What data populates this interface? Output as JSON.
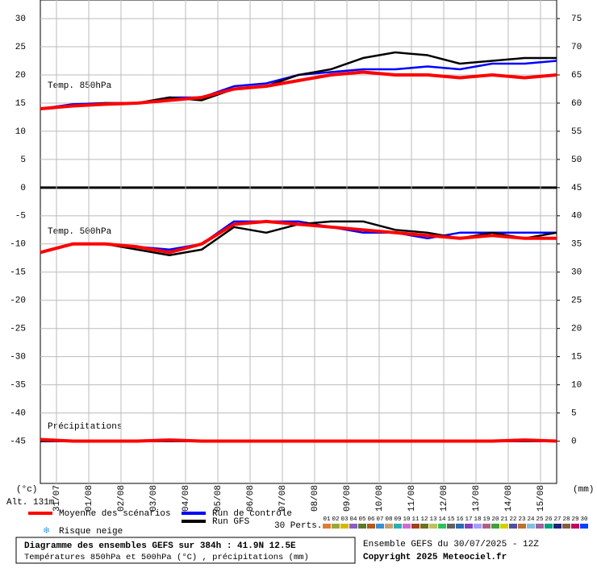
{
  "chart_data": {
    "type": "line",
    "panels": [
      "Temp. 850hPa",
      "Temp. 500hPa",
      "Précipitations"
    ],
    "y_unit": "(°c)",
    "y2_unit": "(mm)",
    "altitude": "Alt. 131m",
    "xlim": [
      0,
      384
    ],
    "x": [
      0,
      24,
      48,
      72,
      96,
      120,
      144,
      168,
      192,
      216,
      240,
      264,
      288,
      312,
      336,
      360,
      384
    ],
    "xticks": [
      {
        "value": 12,
        "label": "31/07"
      },
      {
        "value": 36,
        "label": "01/08"
      },
      {
        "value": 60,
        "label": "02/08"
      },
      {
        "value": 84,
        "label": "03/08"
      },
      {
        "value": 108,
        "label": "04/08"
      },
      {
        "value": 132,
        "label": "05/08"
      },
      {
        "value": 156,
        "label": "06/08"
      },
      {
        "value": 180,
        "label": "07/08"
      },
      {
        "value": 204,
        "label": "08/08"
      },
      {
        "value": 228,
        "label": "09/08"
      },
      {
        "value": 252,
        "label": "10/08"
      },
      {
        "value": 276,
        "label": "11/08"
      },
      {
        "value": 300,
        "label": "12/08"
      },
      {
        "value": 324,
        "label": "13/08"
      },
      {
        "value": 348,
        "label": "14/08"
      },
      {
        "value": 372,
        "label": "15/08"
      }
    ],
    "ylim": [
      -52.5,
      33.3
    ],
    "yticks": [
      30,
      25,
      20,
      15,
      10,
      5,
      0,
      -5,
      -10,
      -15,
      -20,
      -25,
      -30,
      -35,
      -40,
      -45
    ],
    "y2lim": [
      -7.5,
      78.3
    ],
    "y2ticks": [
      75,
      70,
      65,
      60,
      55,
      50,
      45,
      40,
      35,
      30,
      25,
      20,
      15,
      10,
      5,
      0
    ],
    "grid": true,
    "series": [
      {
        "name": "Run de contrôle",
        "color": "#0000ff",
        "t850": [
          14,
          14.8,
          15,
          15,
          16,
          16,
          18,
          18.5,
          20,
          20.5,
          21,
          21,
          21.5,
          21,
          22,
          22,
          22.5
        ],
        "t500": [
          -11.5,
          -10,
          -10,
          -10.5,
          -11,
          -10,
          -6,
          -6,
          -6,
          -7,
          -8,
          -8,
          -9,
          -8,
          -8,
          -8,
          -8
        ],
        "precip": [
          0,
          0,
          0,
          0,
          0,
          0,
          0,
          0,
          0,
          0,
          0,
          0,
          0,
          0,
          0,
          0,
          0
        ]
      },
      {
        "name": "Run GFS",
        "color": "#000000",
        "t850": [
          14,
          14.5,
          15,
          15,
          16,
          15.5,
          17.5,
          18,
          20,
          21,
          23,
          24,
          23.5,
          22,
          22.5,
          23,
          23
        ],
        "t500": [
          -11.5,
          -10,
          -10,
          -11,
          -12,
          -11,
          -7,
          -8,
          -6.5,
          -6,
          -6,
          -7.5,
          -8,
          -9,
          -8,
          -9,
          -8
        ],
        "precip": [
          0,
          0,
          0,
          0,
          0,
          0,
          0,
          0,
          0,
          0,
          0,
          0,
          0,
          0,
          0,
          0,
          0
        ]
      },
      {
        "name": "Moyenne des scénarios",
        "color": "#ff0000",
        "t850": [
          14,
          14.5,
          14.8,
          15,
          15.5,
          16,
          17.5,
          18,
          19,
          20,
          20.5,
          20,
          20,
          19.5,
          20,
          19.5,
          20
        ],
        "t500": [
          -11.5,
          -10,
          -10,
          -10.5,
          -11.5,
          -10,
          -6.5,
          -6,
          -6.5,
          -7,
          -7.5,
          -8,
          -8.5,
          -9,
          -8.5,
          -9,
          -9
        ],
        "precip": [
          0.3,
          0,
          0,
          0,
          0.2,
          0,
          0,
          0,
          0,
          0,
          0,
          0,
          0,
          0,
          0,
          0.2,
          0
        ]
      }
    ],
    "snow_label": "Risque neige",
    "perturbations": {
      "label": "30 Perts.",
      "names": [
        "01",
        "02",
        "03",
        "04",
        "05",
        "06",
        "07",
        "08",
        "09",
        "10",
        "11",
        "12",
        "13",
        "14",
        "15",
        "16",
        "17",
        "18",
        "19",
        "20",
        "21",
        "22",
        "23",
        "24",
        "25",
        "26",
        "27",
        "28",
        "29",
        "30"
      ],
      "colors": [
        "#e07b39",
        "#9aa83a",
        "#d4b800",
        "#8a5cc4",
        "#5a7a2a",
        "#b05a20",
        "#3a8fd0",
        "#c9a070",
        "#2ab0b0",
        "#d06ad0",
        "#a04020",
        "#707020",
        "#c0c060",
        "#30c060",
        "#606060",
        "#2a6ab0",
        "#8040c0",
        "#a0a0ff",
        "#b06080",
        "#40a040",
        "#d0d000",
        "#5050a0",
        "#c07030",
        "#80c0e0",
        "#a060a0",
        "#00a080",
        "#202080",
        "#806040",
        "#c00060",
        "#0040ff"
      ]
    },
    "footer": {
      "title": "Diagramme des ensembles GEFS sur 384h : 41.9N 12.5E",
      "subtitle": "Températures 850hPa et 500hPa (°C) , précipitations (mm)",
      "run": "Ensemble GEFS du 30/07/2025 - 12Z",
      "copyright": "Copyright 2025 Meteociel.fr"
    }
  }
}
